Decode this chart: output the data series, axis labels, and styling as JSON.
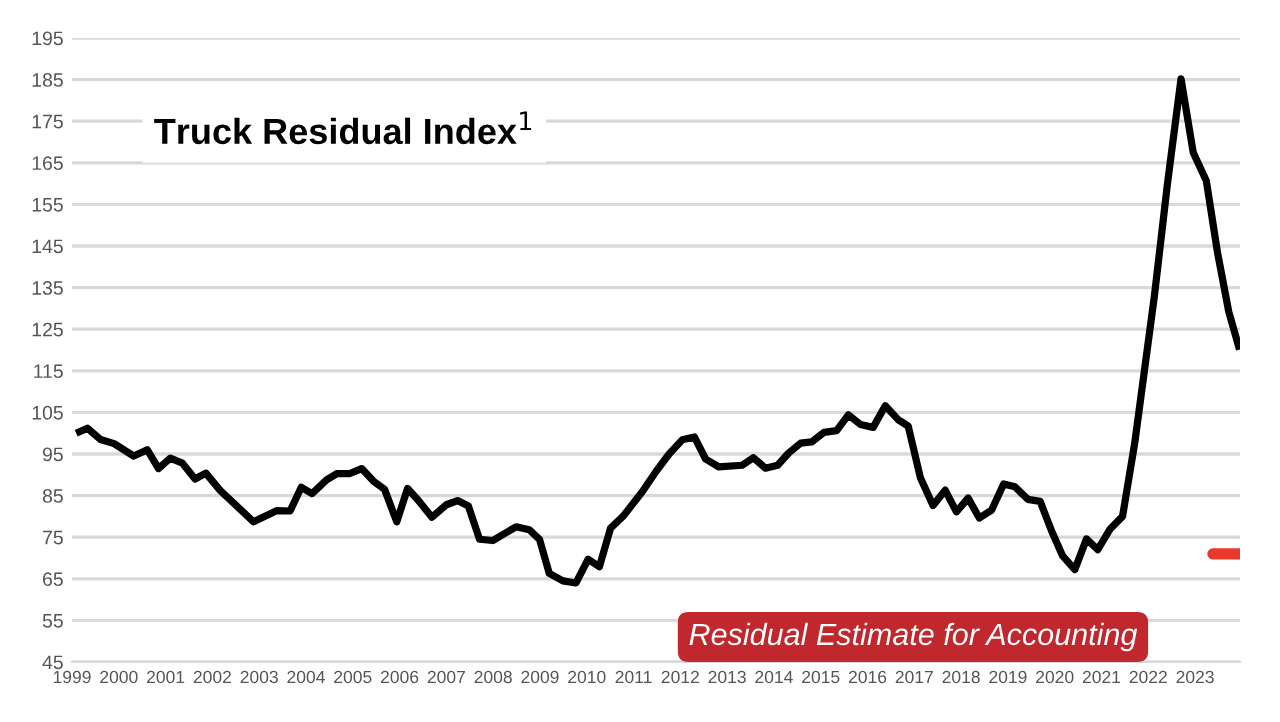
{
  "chart_data": {
    "type": "line",
    "title": "Truck Residual Index$^{1}$",
    "annotations": [
      "Residual Estimate for Accounting"
    ],
    "series": [
      {
        "color": "#000000",
        "x": [
          1999.09,
          1999.33,
          1999.61,
          1999.9,
          2000.32,
          2000.61,
          2000.85,
          2001.1,
          2001.36,
          2001.63,
          2001.86,
          2002.17,
          2002.88,
          2003.38,
          2003.66,
          2003.9,
          2004.13,
          2004.44,
          2004.66,
          2004.94,
          2005.19,
          2005.44,
          2005.68,
          2005.94,
          2006.17,
          2006.39,
          2006.69,
          2007.0,
          2007.24,
          2007.47,
          2007.71,
          2007.99,
          2008.49,
          2008.77,
          2008.99,
          2009.2,
          2009.49,
          2009.77,
          2010.03,
          2010.27,
          2010.51,
          2010.79,
          2011.19,
          2011.48,
          2011.76,
          2012.04,
          2012.3,
          2012.54,
          2012.82,
          2013.32,
          2013.56,
          2013.82,
          2014.08,
          2014.32,
          2014.57,
          2014.81,
          2015.07,
          2015.34,
          2015.59,
          2015.85,
          2016.12,
          2016.38,
          2016.66,
          2016.87,
          2017.13,
          2017.4,
          2017.66,
          2017.9,
          2018.15,
          2018.39,
          2018.65,
          2018.91,
          2019.15,
          2019.43,
          2019.69,
          2019.93,
          2020.17,
          2020.43,
          2020.68,
          2020.92,
          2021.18,
          2021.45,
          2021.71,
          2022.13,
          2022.41,
          2022.7,
          2022.96,
          2023.24,
          2023.48,
          2023.72,
          2023.95
        ],
        "values": [
          100,
          101.2,
          98.5,
          97.5,
          94.5,
          96,
          91.5,
          94,
          92.8,
          89,
          90.4,
          86.2,
          78.7,
          81.4,
          81.3,
          87,
          85.5,
          88.8,
          90.3,
          90.3,
          91.5,
          88.5,
          86.5,
          78.7,
          86.7,
          84,
          79.8,
          82.8,
          83.8,
          82.5,
          74.5,
          74.2,
          77.5,
          76.8,
          74.5,
          66.3,
          64.5,
          64,
          69.7,
          67.9,
          77.2,
          80.2,
          86,
          90.8,
          95,
          98.4,
          99.1,
          93.8,
          91.9,
          92.3,
          94.1,
          91.6,
          92.3,
          95.3,
          97.6,
          97.9,
          100.2,
          100.6,
          104.4,
          102.1,
          101.4,
          106.6,
          103.2,
          101.7,
          89.3,
          82.6,
          86.3,
          81.1,
          84.4,
          79.6,
          81.5,
          87.8,
          87.1,
          84.1,
          83.6,
          76.6,
          70.5,
          67.2,
          74.6,
          72,
          76.9,
          80,
          97.6,
          132.9,
          160,
          185.2,
          167.5,
          160.7,
          143.4,
          129.2,
          120.1
        ]
      },
      {
        "color": "#e8392c",
        "x": [
          2023.38,
          2023.94
        ],
        "values": [
          71,
          71
        ]
      }
    ],
    "xlim": [
      1999,
      2023.96
    ],
    "xticks": [
      1999,
      2000,
      2001,
      2002,
      2003,
      2004,
      2005,
      2006,
      2007,
      2008,
      2009,
      2010,
      2011,
      2012,
      2013,
      2014,
      2015,
      2016,
      2017,
      2018,
      2019,
      2020,
      2021,
      2022,
      2023
    ],
    "ylim": [
      45,
      195
    ],
    "yticks": [
      45,
      55,
      65,
      75,
      85,
      95,
      105,
      115,
      125,
      135,
      145,
      155,
      165,
      175,
      185,
      195
    ],
    "grid": "y",
    "marker": "none",
    "line_style": "solid"
  }
}
